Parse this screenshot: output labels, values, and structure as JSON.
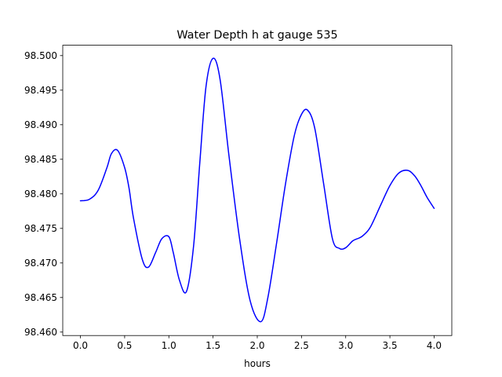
{
  "chart_data": {
    "type": "line",
    "title": "Water Depth h at gauge 535",
    "xlabel": "hours",
    "ylabel": "",
    "xlim": [
      -0.2,
      4.2
    ],
    "ylim": [
      98.4595,
      98.5015
    ],
    "xticks": [
      0.0,
      0.5,
      1.0,
      1.5,
      2.0,
      2.5,
      3.0,
      3.5,
      4.0
    ],
    "xtick_labels": [
      "0.0",
      "0.5",
      "1.0",
      "1.5",
      "2.0",
      "2.5",
      "3.0",
      "3.5",
      "4.0"
    ],
    "yticks": [
      98.46,
      98.465,
      98.47,
      98.475,
      98.48,
      98.485,
      98.49,
      98.495,
      98.5
    ],
    "ytick_labels": [
      "98.460",
      "98.465",
      "98.470",
      "98.475",
      "98.480",
      "98.485",
      "98.490",
      "98.495",
      "98.500"
    ],
    "grid": false,
    "series": [
      {
        "color": "#0000ff",
        "x": [
          0.0,
          0.1,
          0.2,
          0.3,
          0.35,
          0.42,
          0.5,
          0.55,
          0.6,
          0.7,
          0.77,
          0.85,
          0.92,
          1.0,
          1.05,
          1.12,
          1.2,
          1.28,
          1.35,
          1.42,
          1.5,
          1.58,
          1.68,
          1.8,
          1.92,
          2.04,
          2.12,
          2.22,
          2.32,
          2.42,
          2.5,
          2.57,
          2.65,
          2.75,
          2.85,
          2.93,
          3.0,
          3.08,
          3.15,
          3.2,
          3.28,
          3.4,
          3.5,
          3.6,
          3.7,
          3.78,
          3.85,
          3.92,
          4.0
        ],
        "y": [
          98.479,
          98.4792,
          98.4805,
          98.4838,
          98.4858,
          98.4863,
          98.4838,
          98.4808,
          98.4765,
          98.4705,
          98.4694,
          98.4715,
          98.4735,
          98.4738,
          98.4715,
          98.4675,
          98.4659,
          98.4725,
          98.4845,
          98.4955,
          98.4996,
          98.4965,
          98.4855,
          98.4735,
          98.4645,
          98.4615,
          98.465,
          98.473,
          98.4815,
          98.4885,
          98.4915,
          98.4921,
          98.4895,
          98.4815,
          98.4735,
          98.4721,
          98.4722,
          98.4732,
          98.4736,
          98.474,
          98.4752,
          98.4785,
          98.4812,
          98.483,
          98.4834,
          98.4826,
          98.4812,
          98.4795,
          98.4779
        ]
      }
    ]
  }
}
